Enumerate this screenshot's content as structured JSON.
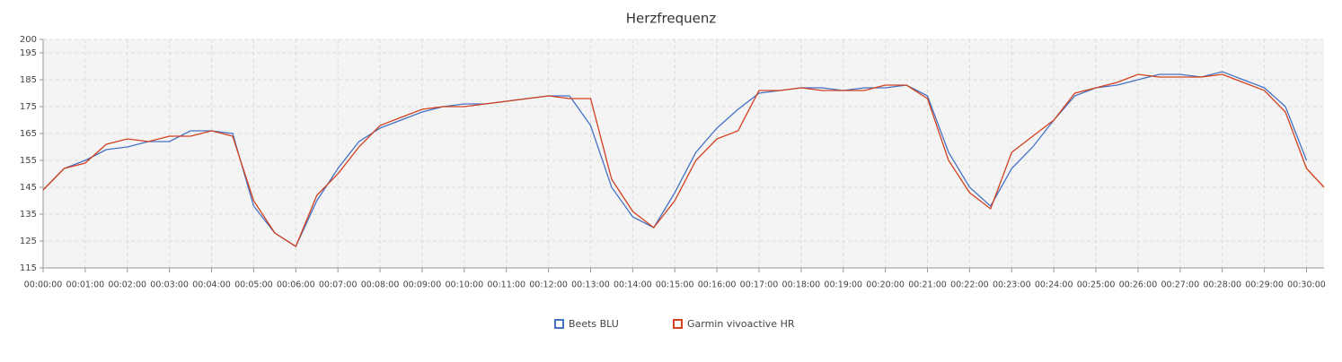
{
  "chart_data": {
    "type": "line",
    "title": "Herzfrequenz",
    "x": [
      0,
      30,
      60,
      90,
      120,
      150,
      180,
      210,
      240,
      270,
      300,
      330,
      360,
      390,
      420,
      450,
      480,
      510,
      540,
      570,
      600,
      630,
      660,
      690,
      720,
      750,
      780,
      810,
      840,
      870,
      900,
      930,
      960,
      990,
      1020,
      1050,
      1080,
      1110,
      1140,
      1170,
      1200,
      1230,
      1260,
      1290,
      1320,
      1350,
      1380,
      1410,
      1440,
      1470,
      1500,
      1530,
      1560,
      1590,
      1620,
      1650,
      1680,
      1710,
      1740,
      1770,
      1800,
      1825
    ],
    "xlim": [
      0,
      1825
    ],
    "xticks": [
      {
        "value": 0,
        "label": "00:00:00"
      },
      {
        "value": 60,
        "label": "00:01:00"
      },
      {
        "value": 120,
        "label": "00:02:00"
      },
      {
        "value": 180,
        "label": "00:03:00"
      },
      {
        "value": 240,
        "label": "00:04:00"
      },
      {
        "value": 300,
        "label": "00:05:00"
      },
      {
        "value": 360,
        "label": "00:06:00"
      },
      {
        "value": 420,
        "label": "00:07:00"
      },
      {
        "value": 480,
        "label": "00:08:00"
      },
      {
        "value": 540,
        "label": "00:09:00"
      },
      {
        "value": 600,
        "label": "00:10:00"
      },
      {
        "value": 660,
        "label": "00:11:00"
      },
      {
        "value": 720,
        "label": "00:12:00"
      },
      {
        "value": 780,
        "label": "00:13:00"
      },
      {
        "value": 840,
        "label": "00:14:00"
      },
      {
        "value": 900,
        "label": "00:15:00"
      },
      {
        "value": 960,
        "label": "00:16:00"
      },
      {
        "value": 1020,
        "label": "00:17:00"
      },
      {
        "value": 1080,
        "label": "00:18:00"
      },
      {
        "value": 1140,
        "label": "00:19:00"
      },
      {
        "value": 1200,
        "label": "00:20:00"
      },
      {
        "value": 1260,
        "label": "00:21:00"
      },
      {
        "value": 1320,
        "label": "00:22:00"
      },
      {
        "value": 1380,
        "label": "00:23:00"
      },
      {
        "value": 1440,
        "label": "00:24:00"
      },
      {
        "value": 1500,
        "label": "00:25:00"
      },
      {
        "value": 1560,
        "label": "00:26:00"
      },
      {
        "value": 1620,
        "label": "00:27:00"
      },
      {
        "value": 1680,
        "label": "00:28:00"
      },
      {
        "value": 1740,
        "label": "00:29:00"
      },
      {
        "value": 1800,
        "label": "00:30:00"
      }
    ],
    "ylim": [
      115,
      200
    ],
    "yticks": [
      115,
      125,
      135,
      145,
      155,
      165,
      175,
      185,
      195,
      200
    ],
    "grid": true,
    "legend": "bottom",
    "series": [
      {
        "name": "Beets BLU",
        "color": "#4472c4",
        "values": [
          144,
          152,
          155,
          159,
          160,
          162,
          162,
          166,
          166,
          165,
          138,
          128,
          123,
          140,
          152,
          162,
          167,
          170,
          173,
          175,
          176,
          176,
          177,
          178,
          179,
          179,
          168,
          145,
          134,
          130,
          143,
          158,
          167,
          174,
          180,
          181,
          182,
          182,
          181,
          182,
          182,
          183,
          179,
          158,
          145,
          138,
          152,
          160,
          170,
          179,
          182,
          183,
          185,
          187,
          187,
          186,
          188,
          185,
          182,
          175,
          155,
          null
        ]
      },
      {
        "name": "Garmin vivoactive HR",
        "color": "#d2401e",
        "values": [
          144,
          152,
          154,
          161,
          163,
          162,
          164,
          164,
          166,
          164,
          140,
          128,
          123,
          142,
          150,
          160,
          168,
          171,
          174,
          175,
          175,
          176,
          177,
          178,
          179,
          178,
          178,
          148,
          136,
          130,
          140,
          155,
          163,
          166,
          181,
          181,
          182,
          181,
          181,
          181,
          183,
          183,
          178,
          155,
          143,
          137,
          158,
          164,
          170,
          180,
          182,
          184,
          187,
          186,
          186,
          186,
          187,
          184,
          181,
          173,
          152,
          145
        ]
      }
    ]
  }
}
